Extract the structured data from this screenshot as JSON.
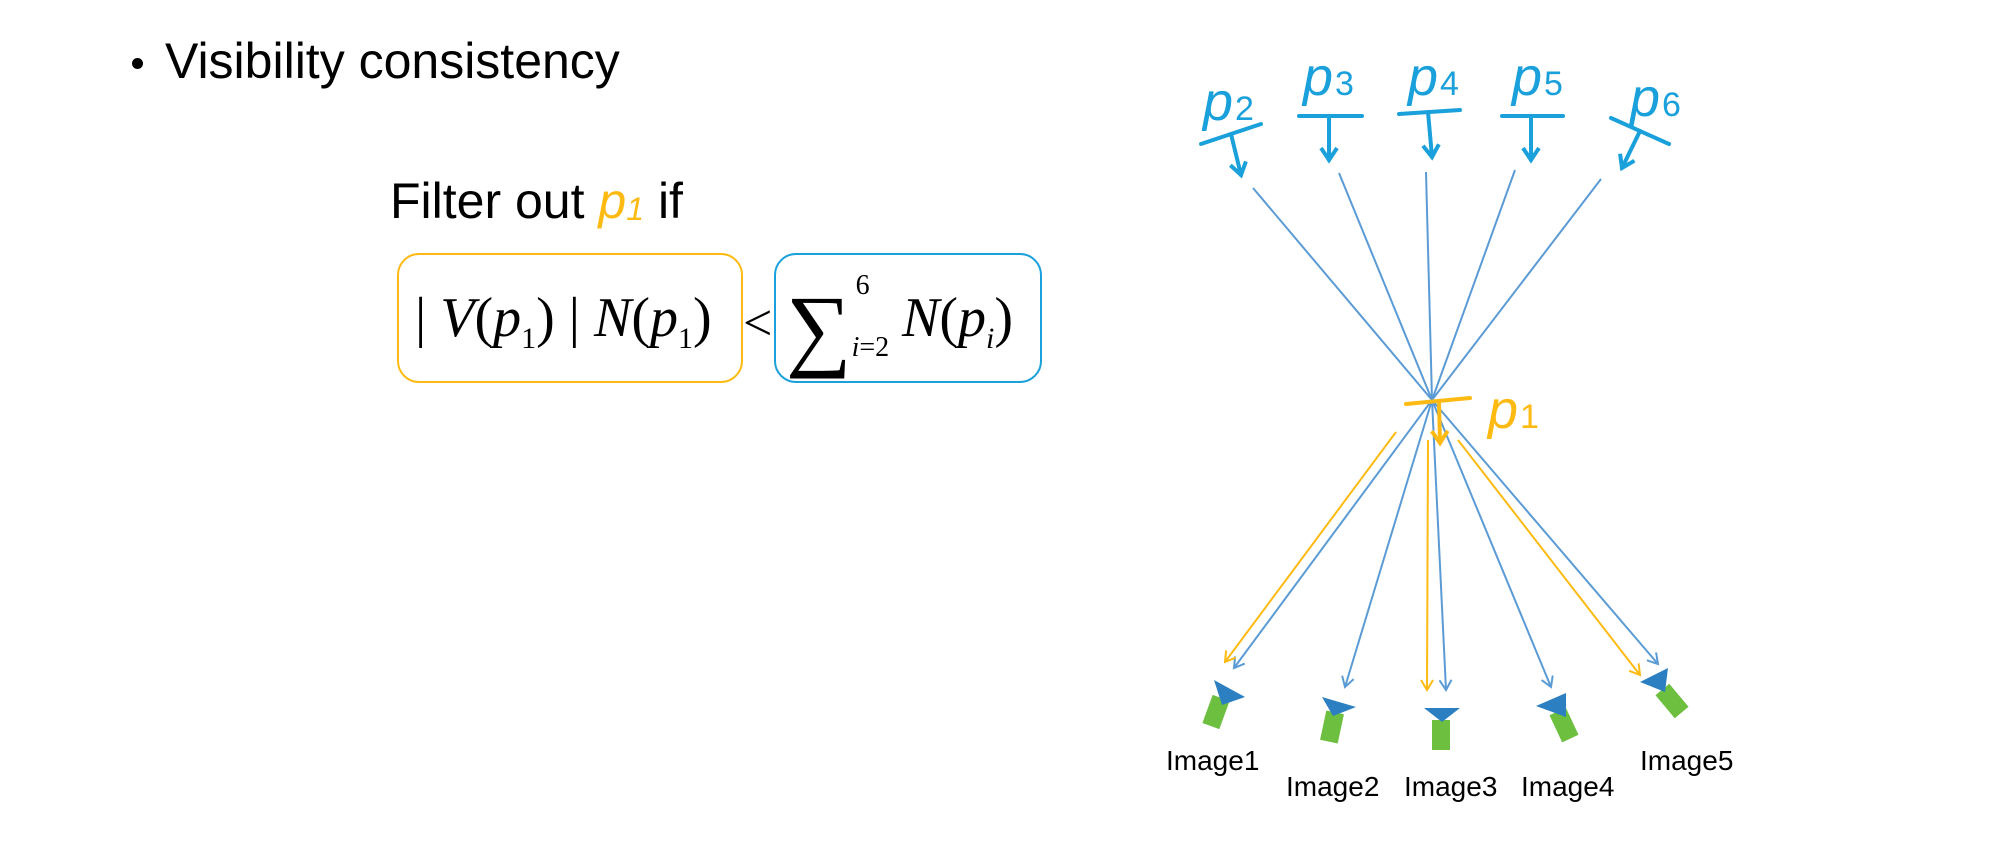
{
  "slide": {
    "bullet": "Visibility consistency",
    "filter_prefix": "Filter out",
    "filter_p": "p",
    "filter_sub": "1",
    "filter_suffix": "if"
  },
  "equation": {
    "left": {
      "bar1": "| ",
      "v": "V",
      "open1": "(",
      "p": "p",
      "sub": "1",
      "close1": ") | ",
      "n": "N",
      "open2": "(",
      "p2": "p",
      "sub2": "1",
      "close2": ")"
    },
    "less_than": "<",
    "right": {
      "sigma": "∑",
      "upper": "6",
      "lower_var": "i",
      "lower_rest": "=2",
      "n": "N",
      "open": "(",
      "p": "p",
      "sub": "i",
      "close": ")"
    }
  },
  "points": {
    "top": [
      {
        "base": "p",
        "sub": "2"
      },
      {
        "base": "p",
        "sub": "3"
      },
      {
        "base": "p",
        "sub": "4"
      },
      {
        "base": "p",
        "sub": "5"
      },
      {
        "base": "p",
        "sub": "6"
      }
    ],
    "center": {
      "base": "p",
      "sub": "1"
    }
  },
  "cameras": [
    "Image1",
    "Image2",
    "Image3",
    "Image4",
    "Image5"
  ],
  "colors": {
    "orange": "#FDBA12",
    "cyan": "#1AA0DB",
    "ray_blue": "#5B9BD5",
    "camera_body": "#6CBF3F",
    "camera_lens": "#2C7FC0"
  }
}
